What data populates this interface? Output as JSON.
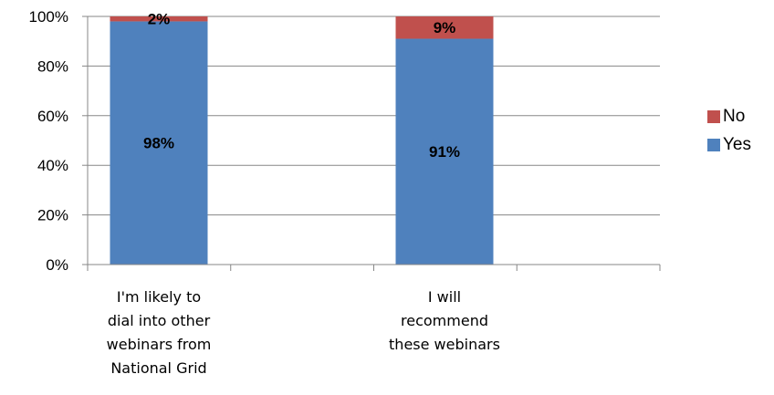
{
  "chart_data": {
    "type": "bar",
    "stacked": true,
    "percent_stacked": true,
    "categories": [
      [
        "I'm likely to",
        "dial into other",
        "webinars from",
        "National Grid"
      ],
      [
        "I will",
        "recommend",
        "these webinars"
      ]
    ],
    "series": [
      {
        "name": "Yes",
        "values": [
          98,
          91
        ],
        "labels": [
          "98%",
          "91%"
        ],
        "color": "#4F81BD"
      },
      {
        "name": "No",
        "values": [
          2,
          9
        ],
        "labels": [
          "2%",
          "9%"
        ],
        "color": "#C0504D"
      }
    ],
    "ylim": [
      0,
      100
    ],
    "yticks": [
      "0%",
      "20%",
      "40%",
      "60%",
      "80%",
      "100%"
    ],
    "grid": true,
    "legend_position": "right"
  },
  "legend": {
    "items": [
      {
        "name": "No",
        "color": "#C0504D"
      },
      {
        "name": "Yes",
        "color": "#4F81BD"
      }
    ]
  }
}
